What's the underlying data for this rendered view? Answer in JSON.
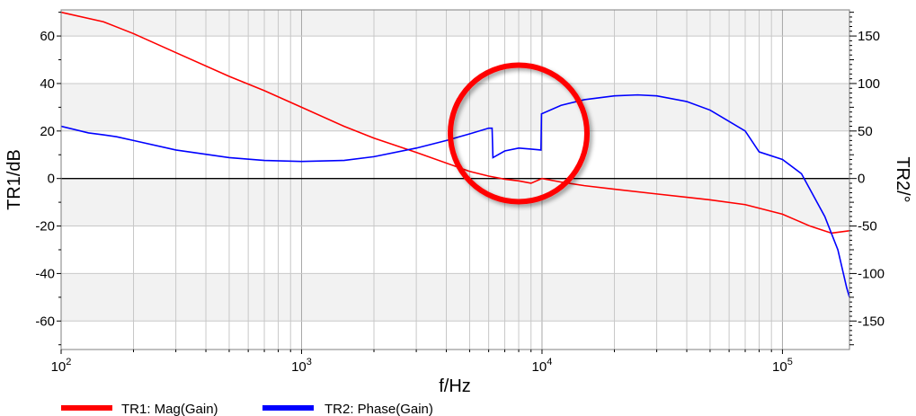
{
  "chart_data": {
    "type": "line",
    "xlabel": "f/Hz",
    "ylabel_left": "TR1/dB",
    "ylabel_right": "TR2/°",
    "x_scale": "log",
    "xlim": [
      100,
      190000
    ],
    "ylim_left": [
      -72,
      71
    ],
    "ylim_right": [
      -180,
      177.5
    ],
    "grid": true,
    "legend_position": "bottom-left",
    "x_ticks": [
      {
        "value": 100,
        "base": "10",
        "exp": "2"
      },
      {
        "value": 1000,
        "base": "10",
        "exp": "3"
      },
      {
        "value": 10000,
        "base": "10",
        "exp": "4"
      },
      {
        "value": 100000,
        "base": "10",
        "exp": "5"
      }
    ],
    "y_ticks_left": [
      {
        "value": 60,
        "label": "60"
      },
      {
        "value": 40,
        "label": "40"
      },
      {
        "value": 20,
        "label": "20"
      },
      {
        "value": 0,
        "label": "0"
      },
      {
        "value": -20,
        "label": "-20"
      },
      {
        "value": -40,
        "label": "-40"
      },
      {
        "value": -60,
        "label": "-60"
      }
    ],
    "y_ticks_right": [
      {
        "value": 150,
        "label": "150"
      },
      {
        "value": 100,
        "label": "100"
      },
      {
        "value": 50,
        "label": "50"
      },
      {
        "value": 0,
        "label": "0"
      },
      {
        "value": -50,
        "label": "-50"
      },
      {
        "value": -100,
        "label": "-100"
      },
      {
        "value": -150,
        "label": "-150"
      }
    ],
    "series": [
      {
        "name": "TR1: Mag(Gain)",
        "axis": "left",
        "color": "#ff0000",
        "x": [
          100,
          150,
          200,
          300,
          500,
          700,
          1000,
          1500,
          2000,
          3000,
          5000,
          6000,
          7000,
          8000,
          9000,
          10000,
          12000,
          15000,
          20000,
          30000,
          50000,
          70000,
          100000,
          130000,
          160000,
          190000
        ],
        "y": [
          70,
          66,
          61,
          53,
          43,
          37,
          30,
          22,
          17,
          11,
          3,
          1,
          -0.3,
          -1,
          -2,
          0,
          -1.5,
          -3,
          -4.5,
          -6.5,
          -9,
          -11,
          -15,
          -20,
          -23,
          -22
        ]
      },
      {
        "name": "TR2: Phase(Gain)",
        "axis": "right",
        "color": "#0000ff",
        "x": [
          100,
          130,
          150,
          170,
          200,
          300,
          500,
          700,
          1000,
          1500,
          2000,
          3000,
          4000,
          5000,
          6000,
          6200,
          6250,
          7000,
          8000,
          9000,
          9900,
          9950,
          12000,
          15000,
          20000,
          25000,
          30000,
          40000,
          50000,
          70000,
          80000,
          100000,
          120000,
          150000,
          170000,
          185000,
          190000
        ],
        "y": [
          55,
          48,
          46,
          44,
          40,
          30,
          22,
          19,
          18,
          19,
          23,
          32,
          40,
          47,
          53,
          53,
          22,
          29,
          32,
          31,
          30,
          68,
          77,
          83,
          87,
          88,
          87,
          81,
          72,
          50,
          28,
          20,
          5,
          -40,
          -75,
          -115,
          -125
        ]
      }
    ],
    "annotations": [
      {
        "type": "circle",
        "x": 8000,
        "y_left": 19,
        "color": "#ff0000"
      }
    ]
  }
}
